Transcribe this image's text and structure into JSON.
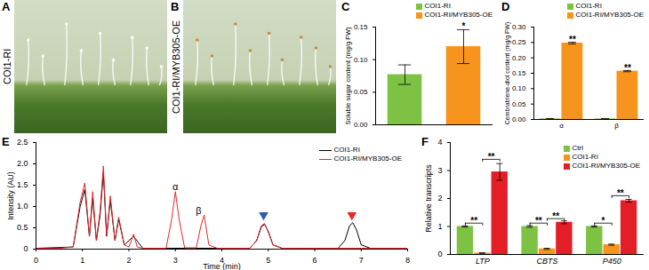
{
  "chart_data": [
    {
      "type": "image",
      "panel": "A",
      "label": "COI1-RI"
    },
    {
      "type": "image",
      "panel": "B",
      "label": "COI1-RI/MYB305-OE"
    },
    {
      "type": "bar",
      "panel": "C",
      "y_label": "Soluble sugar content (mg/g FW)",
      "categories": [
        "COI1-RI",
        "COI1-RI/MYB305-OE"
      ],
      "values": [
        0.077,
        0.12
      ],
      "errors": [
        0.015,
        0.026
      ],
      "colors": [
        "#7dc242",
        "#f7941d"
      ],
      "ylim": [
        0,
        0.15
      ],
      "yticks": [
        {
          "value": 0,
          "label": "0.00"
        },
        {
          "value": 0.05,
          "label": "0.05"
        },
        {
          "value": 0.1,
          "label": "0.10"
        },
        {
          "value": 0.15,
          "label": "0.15"
        }
      ],
      "tick_labels": "y",
      "legend": "top right",
      "annotations": [
        {
          "category": "COI1-RI/MYB305-OE",
          "y": 0.148,
          "label": "*"
        }
      ]
    },
    {
      "type": "bar",
      "panel": "D",
      "y_label": "Cembratriene-diol content (mg/g FW)",
      "categories": [
        "α",
        "β"
      ],
      "series": [
        {
          "name": "COI1-RI",
          "color": "#7dc242",
          "values": [
            0.002,
            0.002
          ],
          "errors": [
            0.001,
            0.001
          ]
        },
        {
          "name": "COI1-RI/MYB305-OE",
          "color": "#f7941d",
          "values": [
            0.248,
            0.157
          ],
          "errors": [
            0.003,
            0.002
          ]
        }
      ],
      "ylim": [
        0,
        0.3
      ],
      "yticks": [
        {
          "value": 0,
          "label": "0.00"
        },
        {
          "value": 0.05,
          "label": "0.05"
        },
        {
          "value": 0.1,
          "label": "0.10"
        },
        {
          "value": 0.15,
          "label": "0.15"
        },
        {
          "value": 0.2,
          "label": "0.20"
        },
        {
          "value": 0.25,
          "label": "0.25"
        },
        {
          "value": 0.3,
          "label": "0.30"
        }
      ],
      "legend": "top right",
      "annotations": [
        {
          "category": "α",
          "series": "COI1-RI/MYB305-OE",
          "y": 0.253,
          "label": "**"
        },
        {
          "category": "β",
          "series": "COI1-RI/MYB305-OE",
          "y": 0.161,
          "label": "**"
        }
      ]
    },
    {
      "type": "line",
      "panel": "E",
      "x_label": "Time (min)",
      "y_label": "Intensity (AU)",
      "xlim": [
        0,
        8
      ],
      "xticks": [
        0,
        1,
        2,
        3,
        4,
        5,
        6,
        7,
        8
      ],
      "ylim": [
        0,
        2.5
      ],
      "yticks": [
        0,
        0.5,
        {
          "value": 1,
          "label": "1.0"
        },
        1.5,
        {
          "value": 2,
          "label": "2.0"
        },
        2.5
      ],
      "series": [
        {
          "name": "COI1-RI",
          "color": "#000000",
          "x": [
            0,
            0.8,
            0.95,
            1.05,
            1.15,
            1.22,
            1.3,
            1.38,
            1.45,
            1.52,
            1.6,
            1.7,
            1.78,
            1.9,
            2.1,
            2.3,
            4.6,
            4.75,
            4.85,
            4.92,
            5.0,
            5.1,
            5.3,
            6.5,
            6.65,
            6.75,
            6.82,
            6.9,
            7.0,
            7.2,
            8.0
          ],
          "values": [
            0.02,
            0.05,
            1.0,
            1.4,
            0.3,
            1.2,
            0.2,
            0.8,
            1.8,
            0.3,
            1.15,
            0.2,
            0.7,
            0.1,
            0.3,
            0.02,
            0.02,
            0.2,
            0.52,
            0.58,
            0.42,
            0.1,
            0.02,
            0.02,
            0.2,
            0.55,
            0.62,
            0.45,
            0.1,
            0.02,
            0.02
          ]
        },
        {
          "name": "COI1-RI/MYB305-OE",
          "color": "#e8262b",
          "x": [
            0,
            0.5,
            0.8,
            0.95,
            1.05,
            1.15,
            1.22,
            1.3,
            1.38,
            1.45,
            1.52,
            1.6,
            1.7,
            1.78,
            1.9,
            2.0,
            2.1,
            2.18,
            2.3,
            2.8,
            2.92,
            3.0,
            3.08,
            3.2,
            3.45,
            3.55,
            3.62,
            3.72,
            3.9,
            4.6,
            4.75,
            4.85,
            4.92,
            5.0,
            5.1,
            5.3,
            6.0,
            7.0,
            8.0
          ],
          "values": [
            0.02,
            0.02,
            0.05,
            1.1,
            1.55,
            0.3,
            1.35,
            0.2,
            0.9,
            1.95,
            0.3,
            1.25,
            0.2,
            0.75,
            0.1,
            0.05,
            0.35,
            0.05,
            0.02,
            0.02,
            0.7,
            1.35,
            0.7,
            0.03,
            0.03,
            0.55,
            0.8,
            0.1,
            0.02,
            0.02,
            0.2,
            0.55,
            0.6,
            0.4,
            0.1,
            0.02,
            0.02,
            0.02,
            0.02
          ]
        }
      ],
      "legend": "top right",
      "annotations": [
        {
          "x": 3.0,
          "y": 1.45,
          "label": "α"
        },
        {
          "x": 3.5,
          "y": 0.9,
          "label": "β"
        },
        {
          "x": 4.9,
          "y": 0.8,
          "marker": "triangle",
          "color": "#2a5db0"
        },
        {
          "x": 6.8,
          "y": 0.8,
          "marker": "triangle",
          "color": "#e8262b"
        }
      ]
    },
    {
      "type": "bar",
      "panel": "F",
      "y_label": "Relative transcripts",
      "categories": [
        "LTP",
        "CBTS",
        "P450"
      ],
      "series": [
        {
          "name": "Ctrl",
          "color": "#7dc242",
          "values": [
            1,
            1,
            1
          ],
          "errors": [
            0.02,
            0.03,
            0.02
          ]
        },
        {
          "name": "COI1-RI",
          "color": "#f7941d",
          "values": [
            0.05,
            0.2,
            0.35
          ],
          "errors": [
            0.01,
            0.02,
            0.02
          ]
        },
        {
          "name": "COI1-RI/MYB305-OE",
          "color": "#e41e26",
          "values": [
            2.95,
            1.15,
            1.92
          ],
          "errors": [
            0.3,
            0.05,
            0.05
          ]
        }
      ],
      "ylim": [
        0,
        4
      ],
      "yticks": [
        0,
        1,
        2,
        3,
        4
      ],
      "legend": "top right",
      "annotations": [
        {
          "category": "LTP",
          "from": "Ctrl",
          "to": "COI1-RI",
          "y": 1.12,
          "label": "**"
        },
        {
          "category": "LTP",
          "from": "COI1-RI",
          "to": "COI1-RI/MYB305-OE",
          "y": 3.4,
          "label": "**"
        },
        {
          "category": "CBTS",
          "from": "Ctrl",
          "to": "COI1-RI",
          "y": 1.12,
          "label": "**"
        },
        {
          "category": "CBTS",
          "from": "COI1-RI",
          "to": "COI1-RI/MYB305-OE",
          "y": 1.28,
          "label": "**"
        },
        {
          "category": "P450",
          "from": "Ctrl",
          "to": "COI1-RI",
          "y": 1.12,
          "label": "*"
        },
        {
          "category": "P450",
          "from": "COI1-RI",
          "to": "COI1-RI/MYB305-OE",
          "y": 2.1,
          "label": "**"
        }
      ]
    }
  ]
}
